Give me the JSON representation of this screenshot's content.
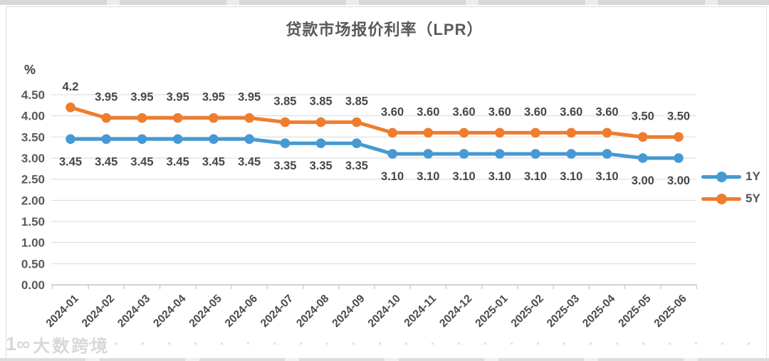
{
  "chart_data": {
    "type": "line",
    "title": "贷款市场报价利率（LPR）",
    "ylabel": "%",
    "xlabel": "",
    "categories": [
      "2024-01",
      "2024-02",
      "2024-03",
      "2024-04",
      "2024-05",
      "2024-06",
      "2024-07",
      "2024-08",
      "2024-09",
      "2024-10",
      "2024-11",
      "2024-12",
      "2025-01",
      "2025-02",
      "2025-03",
      "2025-04",
      "2025-05",
      "2025-06"
    ],
    "series": [
      {
        "name": "1Y",
        "color": "#4699D2",
        "values": [
          3.45,
          3.45,
          3.45,
          3.45,
          3.45,
          3.45,
          3.35,
          3.35,
          3.35,
          3.1,
          3.1,
          3.1,
          3.1,
          3.1,
          3.1,
          3.1,
          3.0,
          3.0
        ],
        "labels": [
          "3.45",
          "3.45",
          "3.45",
          "3.45",
          "3.45",
          "3.45",
          "3.35",
          "3.35",
          "3.35",
          "3.10",
          "3.10",
          "3.10",
          "3.10",
          "3.10",
          "3.10",
          "3.10",
          "3.00",
          "3.00"
        ],
        "label_position": "below"
      },
      {
        "name": "5Y",
        "color": "#EE7D2E",
        "values": [
          4.2,
          3.95,
          3.95,
          3.95,
          3.95,
          3.95,
          3.85,
          3.85,
          3.85,
          3.6,
          3.6,
          3.6,
          3.6,
          3.6,
          3.6,
          3.6,
          3.5,
          3.5
        ],
        "labels": [
          "4.2",
          "3.95",
          "3.95",
          "3.95",
          "3.95",
          "3.95",
          "3.85",
          "3.85",
          "3.85",
          "3.60",
          "3.60",
          "3.60",
          "3.60",
          "3.60",
          "3.60",
          "3.60",
          "3.50",
          "3.50"
        ],
        "label_position": "above"
      }
    ],
    "ylim": [
      0,
      4.5
    ],
    "ytick_step": 0.5,
    "ytick_labels": [
      "0.00",
      "0.50",
      "1.00",
      "1.50",
      "2.00",
      "2.50",
      "3.00",
      "3.50",
      "4.00",
      "4.50"
    ],
    "grid": true,
    "legend_position": "right",
    "colors": {
      "grid": "#d9d9d9",
      "axis": "#c3c3c3",
      "axis_text": "#595959",
      "category_text": "#4a4a4a",
      "data_label": "#474747",
      "title_text": "#595959"
    }
  },
  "watermark": {
    "logo": "1∞",
    "text": "大数跨境"
  }
}
